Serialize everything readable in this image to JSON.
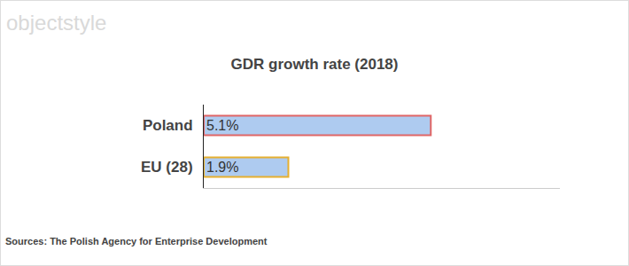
{
  "chart_data": {
    "type": "bar",
    "orientation": "horizontal",
    "title": "GDR growth rate (2018)",
    "categories": [
      "Poland",
      "EU (28)"
    ],
    "values": [
      5.1,
      1.9
    ],
    "value_labels": [
      "5.1%",
      "1.9%"
    ],
    "color": "#aecbf0",
    "colors": [
      "#e06666",
      "#e6b030"
    ],
    "xlim": [
      0,
      8
    ],
    "xticks": [],
    "grid": false,
    "data_labels": true,
    "tick_labels": "y",
    "annotations": [
      "objectstyle",
      "Sources: The Polish Agency for Enterprise Development"
    ]
  }
}
